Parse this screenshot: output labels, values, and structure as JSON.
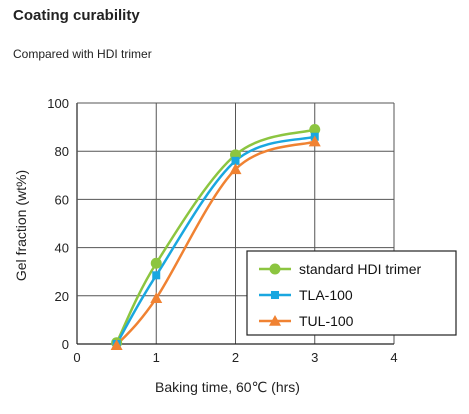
{
  "header": {
    "title": "Coating curability",
    "subtitle": "Compared with HDI trimer"
  },
  "chart_data": {
    "type": "line",
    "xlabel": "Baking time, 60℃ (hrs)",
    "ylabel": "Gel fraction (wt%)",
    "xlim": [
      0,
      4
    ],
    "ylim": [
      0,
      100
    ],
    "xticks": [
      0,
      1,
      2,
      3,
      4
    ],
    "yticks": [
      0,
      20,
      40,
      60,
      80,
      100
    ],
    "grid": true,
    "legend_position": "bottom-right",
    "series": [
      {
        "name": "standard HDI trimer",
        "color": "#8cc540",
        "marker": "circle",
        "x": [
          0.5,
          1,
          2,
          3
        ],
        "y": [
          0.5,
          33.5,
          78.5,
          89
        ]
      },
      {
        "name": "TLA-100",
        "color": "#1aa7e0",
        "marker": "square",
        "x": [
          0.5,
          1,
          2,
          3
        ],
        "y": [
          0,
          28.5,
          76,
          86
        ]
      },
      {
        "name": "TUL-100",
        "color": "#f08232",
        "marker": "triangle",
        "x": [
          0.5,
          1,
          2,
          3
        ],
        "y": [
          -0.5,
          19,
          72.5,
          84
        ]
      }
    ]
  }
}
